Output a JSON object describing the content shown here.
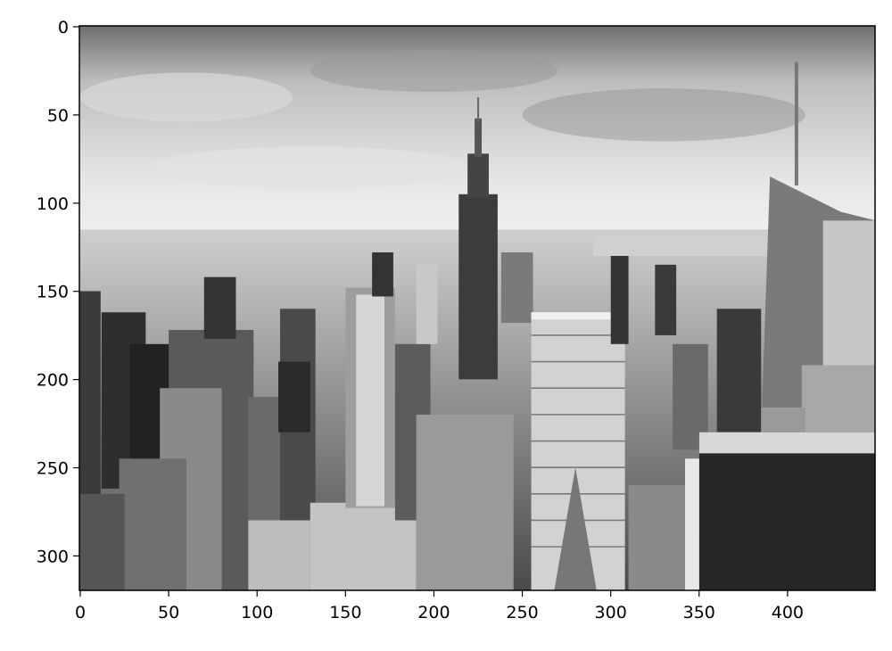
{
  "chart_data": {
    "type": "image",
    "xlim": [
      -0.5,
      449.5
    ],
    "ylim": [
      319.5,
      -0.5
    ],
    "xticks": [
      0,
      50,
      100,
      150,
      200,
      250,
      300,
      350,
      400
    ],
    "yticks": [
      0,
      50,
      100,
      150,
      200,
      250,
      300
    ]
  }
}
